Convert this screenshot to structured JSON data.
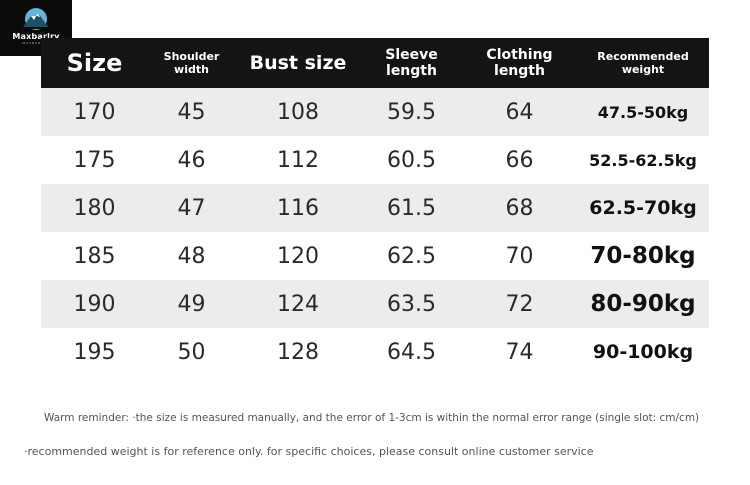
{
  "logo": {
    "brand": "Maxbarlry",
    "tagline": "MAXBARLRY"
  },
  "table": {
    "headers": {
      "size": "Size",
      "shoulder_1": "Shoulder",
      "shoulder_2": "width",
      "bust": "Bust size",
      "sleeve_1": "Sleeve",
      "sleeve_2": "length",
      "clothing_1": "Clothing",
      "clothing_2": "length",
      "weight_1": "Recommended",
      "weight_2": "weight"
    },
    "rows": [
      {
        "size": "170",
        "shoulder": "45",
        "bust": "108",
        "sleeve": "59.5",
        "length": "64",
        "weight": "47.5-50kg"
      },
      {
        "size": "175",
        "shoulder": "46",
        "bust": "112",
        "sleeve": "60.5",
        "length": "66",
        "weight": "52.5-62.5kg"
      },
      {
        "size": "180",
        "shoulder": "47",
        "bust": "116",
        "sleeve": "61.5",
        "length": "68",
        "weight": "62.5-70kg"
      },
      {
        "size": "185",
        "shoulder": "48",
        "bust": "120",
        "sleeve": "62.5",
        "length": "70",
        "weight": "70-80kg"
      },
      {
        "size": "190",
        "shoulder": "49",
        "bust": "124",
        "sleeve": "63.5",
        "length": "72",
        "weight": "80-90kg"
      },
      {
        "size": "195",
        "shoulder": "50",
        "bust": "128",
        "sleeve": "64.5",
        "length": "74",
        "weight": "90-100kg"
      }
    ]
  },
  "notes": {
    "reminder": "Warm reminder: ·the size is measured manually, and the error of 1-3cm is within the normal error range (single slot: cm/cm)",
    "reference": "·recommended weight is for reference only. for specific choices, please consult online customer service"
  },
  "colors": {
    "header_bg": "#141414",
    "stripe_bg": "#ececec",
    "text": "#2a2a2a"
  }
}
